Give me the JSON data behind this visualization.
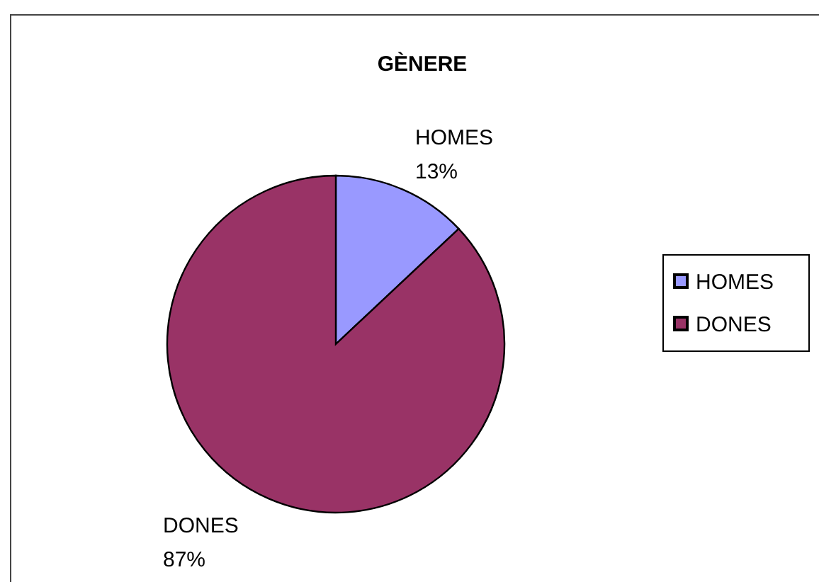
{
  "chart_data": {
    "type": "pie",
    "title": "GÈNERE",
    "categories": [
      "HOMES",
      "DONES"
    ],
    "values": [
      13,
      87
    ],
    "colors": [
      "#9999ff",
      "#993366"
    ],
    "value_labels": [
      "13%",
      "87%"
    ],
    "legend": "right"
  }
}
